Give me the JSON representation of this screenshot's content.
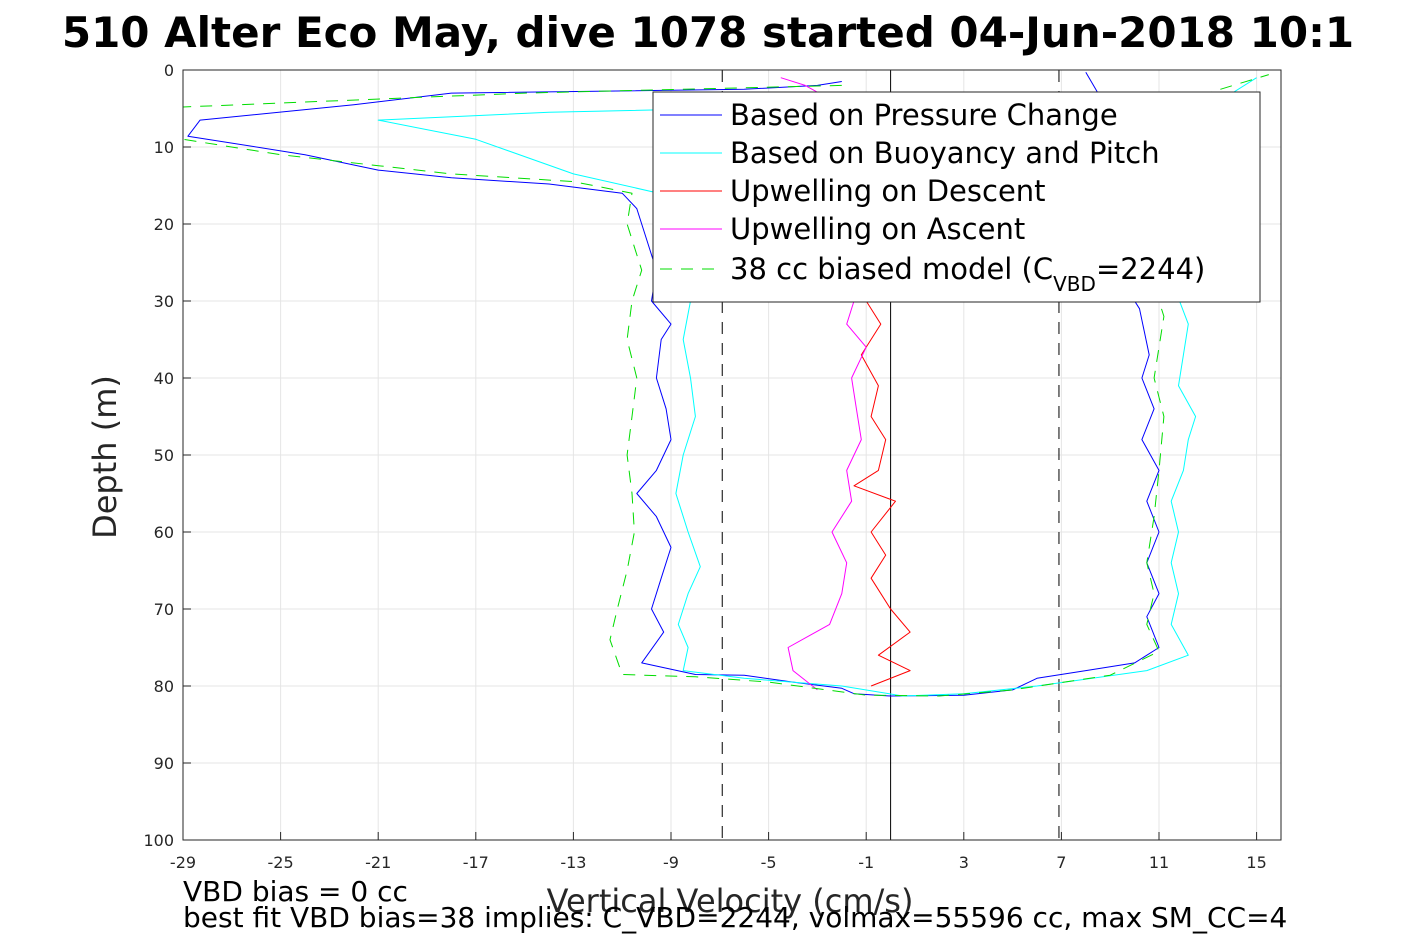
{
  "chart_data": {
    "type": "line",
    "title": "510 Alter Eco May, dive 1078 started 04-Jun-2018 10:1",
    "xlabel": "Vertical Velocity (cm/s)",
    "ylabel": "Depth (m)",
    "xlim": [
      -29,
      16
    ],
    "ylim": [
      100,
      0
    ],
    "x_ticks": [
      "-29",
      "-25",
      "-21",
      "-17",
      "-13",
      "-9",
      "-5",
      "-1",
      "3",
      "7",
      "11",
      "15"
    ],
    "y_ticks": [
      "0",
      "10",
      "20",
      "30",
      "40",
      "50",
      "60",
      "70",
      "80",
      "90",
      "100"
    ],
    "grid": true,
    "legend_position": "top-right",
    "series": [
      {
        "name": "Based on Pressure Change",
        "color": "#0000ff",
        "style": "solid",
        "points": [
          [
            -2,
            1.5
          ],
          [
            -3,
            2
          ],
          [
            -6,
            2.5
          ],
          [
            -18,
            3
          ],
          [
            -22,
            4.5
          ],
          [
            -28.3,
            6.5
          ],
          [
            -28.8,
            8.6
          ],
          [
            -24,
            11
          ],
          [
            -21,
            13
          ],
          [
            -18,
            14
          ],
          [
            -14,
            14.8
          ],
          [
            -11,
            16
          ],
          [
            -10.4,
            18
          ],
          [
            -10,
            22
          ],
          [
            -9.6,
            26
          ],
          [
            -9.8,
            30
          ],
          [
            -9,
            33
          ],
          [
            -9.4,
            35
          ],
          [
            -9.6,
            40
          ],
          [
            -9.2,
            44
          ],
          [
            -9,
            48
          ],
          [
            -9.6,
            52
          ],
          [
            -10.4,
            55
          ],
          [
            -9.6,
            58
          ],
          [
            -9,
            62
          ],
          [
            -9.4,
            66
          ],
          [
            -9.8,
            70
          ],
          [
            -9.3,
            73
          ],
          [
            -10.2,
            77
          ],
          [
            -8,
            78.5
          ],
          [
            -6,
            78.6
          ],
          [
            -4,
            79.5
          ],
          [
            -2,
            80.3
          ],
          [
            -1.5,
            81
          ],
          [
            0,
            81.3
          ],
          [
            3,
            81.2
          ],
          [
            5,
            80.5
          ],
          [
            6,
            79
          ],
          [
            8,
            78
          ],
          [
            10,
            77
          ],
          [
            11,
            75
          ],
          [
            10.5,
            71
          ],
          [
            11,
            68
          ],
          [
            10.5,
            64
          ],
          [
            11,
            60
          ],
          [
            10.5,
            56
          ],
          [
            11,
            52
          ],
          [
            10.3,
            48
          ],
          [
            10.8,
            44
          ],
          [
            10.3,
            40
          ],
          [
            10.6,
            37
          ],
          [
            10.2,
            31
          ],
          [
            9,
            25
          ],
          [
            8.2,
            20
          ],
          [
            7.5,
            14
          ],
          [
            8,
            8
          ],
          [
            8.5,
            3
          ],
          [
            8,
            0.3
          ]
        ]
      },
      {
        "name": "Based on Buoyancy and Pitch",
        "color": "#00ffff",
        "style": "solid",
        "points": [
          [
            -2,
            4
          ],
          [
            -7,
            5
          ],
          [
            -14,
            5.5
          ],
          [
            -21,
            6.5
          ],
          [
            -17,
            9
          ],
          [
            -13,
            13.5
          ],
          [
            -9.5,
            16
          ],
          [
            -9,
            22
          ],
          [
            -8.6,
            26
          ],
          [
            -8.2,
            30
          ],
          [
            -8.5,
            35
          ],
          [
            -8.2,
            40
          ],
          [
            -8,
            45
          ],
          [
            -8.5,
            50
          ],
          [
            -8.8,
            55
          ],
          [
            -8.3,
            60
          ],
          [
            -7.8,
            64.5
          ],
          [
            -8.3,
            68
          ],
          [
            -8.7,
            72
          ],
          [
            -8.3,
            75
          ],
          [
            -8.5,
            78
          ],
          [
            -6,
            79
          ],
          [
            -2,
            80
          ],
          [
            0.5,
            81.3
          ],
          [
            3,
            81
          ],
          [
            6,
            80
          ],
          [
            10.5,
            78
          ],
          [
            12.2,
            76
          ],
          [
            11.5,
            72
          ],
          [
            11.8,
            68
          ],
          [
            11.5,
            64
          ],
          [
            11.8,
            60
          ],
          [
            11.5,
            56
          ],
          [
            12,
            52
          ],
          [
            12.2,
            48
          ],
          [
            12.5,
            45
          ],
          [
            11.8,
            41
          ],
          [
            12,
            37
          ],
          [
            12.2,
            33
          ],
          [
            11.6,
            28
          ],
          [
            11.2,
            22
          ],
          [
            12,
            16
          ],
          [
            12,
            10
          ],
          [
            13,
            5
          ],
          [
            15,
            1
          ]
        ]
      },
      {
        "name": "Upwelling on Descent",
        "color": "#ff0000",
        "style": "solid",
        "points": [
          [
            -1.2,
            7
          ],
          [
            -0.5,
            9
          ],
          [
            -0.8,
            12
          ],
          [
            -0.5,
            16
          ],
          [
            -1,
            20
          ],
          [
            -0.8,
            25
          ],
          [
            -1,
            30
          ],
          [
            -0.4,
            33
          ],
          [
            -1.2,
            37
          ],
          [
            -0.5,
            41
          ],
          [
            -0.8,
            45
          ],
          [
            -0.2,
            48
          ],
          [
            -0.5,
            52
          ],
          [
            -1.5,
            54
          ],
          [
            0.2,
            56
          ],
          [
            -0.8,
            60
          ],
          [
            -0.2,
            63
          ],
          [
            -0.8,
            66
          ],
          [
            0,
            70
          ],
          [
            0.8,
            73
          ],
          [
            -0.5,
            76
          ],
          [
            0.8,
            78
          ],
          [
            -0.8,
            80
          ]
        ]
      },
      {
        "name": "Upwelling on Ascent",
        "color": "#ff00ff",
        "style": "solid",
        "points": [
          [
            -3,
            80.5
          ],
          [
            -4,
            78
          ],
          [
            -4.2,
            75
          ],
          [
            -2.5,
            72
          ],
          [
            -2,
            68
          ],
          [
            -1.8,
            64
          ],
          [
            -2.4,
            60
          ],
          [
            -1.6,
            56
          ],
          [
            -1.8,
            52
          ],
          [
            -1.2,
            48
          ],
          [
            -1.4,
            44
          ],
          [
            -1.6,
            40
          ],
          [
            -1,
            36
          ],
          [
            -1.8,
            33
          ],
          [
            -1.5,
            30
          ],
          [
            -1.2,
            25
          ],
          [
            -1.6,
            20
          ],
          [
            -1.2,
            15
          ],
          [
            -1.5,
            10
          ],
          [
            -1.8,
            5
          ],
          [
            -3.5,
            2
          ],
          [
            -4.5,
            1
          ]
        ]
      },
      {
        "name": "38 cc biased model (C_VBD=2244)",
        "color": "#00dd00",
        "style": "dashed",
        "points": [
          [
            -2,
            2
          ],
          [
            -15,
            3
          ],
          [
            -29,
            4.8
          ],
          [
            -29,
            9
          ],
          [
            -25,
            11
          ],
          [
            -18,
            13.5
          ],
          [
            -13,
            14.5
          ],
          [
            -10.6,
            16
          ],
          [
            -10.8,
            20
          ],
          [
            -10.2,
            26
          ],
          [
            -10.6,
            30
          ],
          [
            -10.8,
            35
          ],
          [
            -10.4,
            40
          ],
          [
            -10.6,
            45
          ],
          [
            -10.8,
            50
          ],
          [
            -10.6,
            55
          ],
          [
            -10.5,
            60
          ],
          [
            -10.8,
            65
          ],
          [
            -11.2,
            70
          ],
          [
            -11.5,
            74
          ],
          [
            -11,
            78.5
          ],
          [
            -8,
            78.8
          ],
          [
            -5,
            79.5
          ],
          [
            -1,
            81.2
          ],
          [
            2,
            81.3
          ],
          [
            5,
            80.5
          ],
          [
            9,
            78.6
          ],
          [
            11,
            75.5
          ],
          [
            10.5,
            72
          ],
          [
            10.8,
            68
          ],
          [
            10.5,
            64
          ],
          [
            10.8,
            58
          ],
          [
            11,
            52
          ],
          [
            11.2,
            45
          ],
          [
            10.8,
            40
          ],
          [
            11,
            36
          ],
          [
            11.2,
            32
          ],
          [
            10.5,
            25
          ],
          [
            9.5,
            18
          ],
          [
            8.5,
            12
          ],
          [
            13,
            3
          ],
          [
            15.5,
            0.6
          ]
        ]
      }
    ],
    "reference_lines": [
      {
        "x": 0,
        "style": "solid",
        "color": "#000000"
      },
      {
        "x": -6.9,
        "style": "dashed",
        "color": "#000000"
      },
      {
        "x": 6.9,
        "style": "dashed",
        "color": "#000000"
      }
    ]
  },
  "legend_main": {
    "model_prefix": "38 cc biased model (C",
    "model_sub": "VBD",
    "model_suffix": "=2244)"
  },
  "notes": {
    "bias": "VBD bias = 0 cc",
    "best_fit": "best fit VBD bias=38 implies: C_VBD=2244, volmax=55596 cc, max SM_CC=4"
  }
}
